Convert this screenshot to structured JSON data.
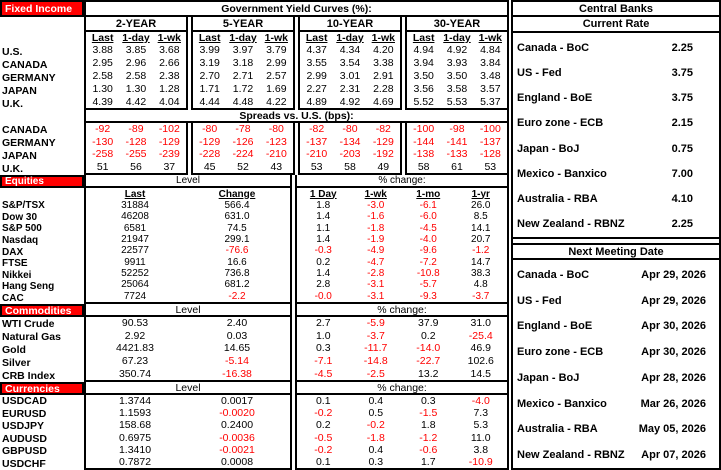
{
  "colors": {
    "accent_red": "#FF0000",
    "negative_text": "#FF0000",
    "border": "#000000",
    "background": "#FFFFFF"
  },
  "fixed_income": {
    "section_label": "Fixed Income",
    "title": "Government Yield Curves (%):",
    "tenors": [
      "2-YEAR",
      "5-YEAR",
      "10-YEAR",
      "30-YEAR"
    ],
    "col_headers": [
      "Last",
      "1-day",
      "1-wk"
    ],
    "yield_rows": [
      {
        "label": "U.S.",
        "values": [
          "3.88",
          "3.85",
          "3.68",
          "3.99",
          "3.97",
          "3.79",
          "4.37",
          "4.34",
          "4.20",
          "4.94",
          "4.92",
          "4.84"
        ]
      },
      {
        "label": "CANADA",
        "values": [
          "2.95",
          "2.96",
          "2.66",
          "3.19",
          "3.18",
          "2.99",
          "3.55",
          "3.54",
          "3.38",
          "3.94",
          "3.93",
          "3.84"
        ]
      },
      {
        "label": "GERMANY",
        "values": [
          "2.58",
          "2.58",
          "2.38",
          "2.70",
          "2.71",
          "2.57",
          "2.99",
          "3.01",
          "2.91",
          "3.50",
          "3.50",
          "3.48"
        ]
      },
      {
        "label": "JAPAN",
        "values": [
          "1.30",
          "1.30",
          "1.28",
          "1.71",
          "1.72",
          "1.69",
          "2.27",
          "2.31",
          "2.28",
          "3.56",
          "3.58",
          "3.57"
        ]
      },
      {
        "label": "U.K.",
        "values": [
          "4.39",
          "4.42",
          "4.04",
          "4.44",
          "4.48",
          "4.22",
          "4.89",
          "4.92",
          "4.69",
          "5.52",
          "5.53",
          "5.37"
        ]
      }
    ],
    "spreads_title": "Spreads vs. U.S. (bps):",
    "spread_rows": [
      {
        "label": "CANADA",
        "values": [
          "-92",
          "-89",
          "-102",
          "-80",
          "-78",
          "-80",
          "-82",
          "-80",
          "-82",
          "-100",
          "-98",
          "-100"
        ]
      },
      {
        "label": "GERMANY",
        "values": [
          "-130",
          "-128",
          "-129",
          "-129",
          "-126",
          "-123",
          "-137",
          "-134",
          "-129",
          "-144",
          "-141",
          "-137"
        ]
      },
      {
        "label": "JAPAN",
        "values": [
          "-258",
          "-255",
          "-239",
          "-228",
          "-224",
          "-210",
          "-210",
          "-203",
          "-192",
          "-138",
          "-133",
          "-128"
        ]
      },
      {
        "label": "U.K.",
        "values": [
          "51",
          "56",
          "37",
          "45",
          "52",
          "43",
          "53",
          "58",
          "49",
          "58",
          "61",
          "53"
        ]
      }
    ]
  },
  "equities": {
    "section_label": "Equities",
    "level_label": "Level",
    "pct_label": "% change:",
    "level_headers": [
      "Last",
      "Change"
    ],
    "pct_headers": [
      "1 Day",
      "1-wk",
      "1-mo",
      "1-yr"
    ],
    "rows": [
      {
        "label": "S&P/TSX",
        "level": [
          "31884",
          "566.4"
        ],
        "pct": [
          "1.8",
          "-3.0",
          "-6.1",
          "26.0"
        ]
      },
      {
        "label": "Dow 30",
        "level": [
          "46208",
          "631.0"
        ],
        "pct": [
          "1.4",
          "-1.6",
          "-6.0",
          "8.5"
        ]
      },
      {
        "label": "S&P 500",
        "level": [
          "6581",
          "74.5"
        ],
        "pct": [
          "1.1",
          "-1.8",
          "-4.5",
          "14.1"
        ]
      },
      {
        "label": "Nasdaq",
        "level": [
          "21947",
          "299.1"
        ],
        "pct": [
          "1.4",
          "-1.9",
          "-4.0",
          "20.7"
        ]
      },
      {
        "label": "DAX",
        "level": [
          "22577",
          "-76.6"
        ],
        "pct": [
          "-0.3",
          "-4.9",
          "-9.6",
          "-1.2"
        ]
      },
      {
        "label": "FTSE",
        "level": [
          "9911",
          "16.6"
        ],
        "pct": [
          "0.2",
          "-4.7",
          "-7.2",
          "14.7"
        ]
      },
      {
        "label": "Nikkei",
        "level": [
          "52252",
          "736.8"
        ],
        "pct": [
          "1.4",
          "-2.8",
          "-10.8",
          "38.3"
        ]
      },
      {
        "label": "Hang Seng",
        "level": [
          "25064",
          "681.2"
        ],
        "pct": [
          "2.8",
          "-3.1",
          "-5.7",
          "4.8"
        ]
      },
      {
        "label": "CAC",
        "level": [
          "7724",
          "-2.2"
        ],
        "pct": [
          "-0.0",
          "-3.1",
          "-9.3",
          "-3.7"
        ]
      }
    ]
  },
  "commodities": {
    "section_label": "Commodities",
    "level_label": "Level",
    "pct_label": "% change:",
    "rows": [
      {
        "label": "WTI Crude",
        "level": [
          "90.53",
          "2.40"
        ],
        "pct": [
          "2.7",
          "-5.9",
          "37.9",
          "31.0"
        ]
      },
      {
        "label": "Natural Gas",
        "level": [
          "2.92",
          "0.03"
        ],
        "pct": [
          "1.0",
          "-3.7",
          "0.2",
          "-25.4"
        ]
      },
      {
        "label": "Gold",
        "level": [
          "4421.83",
          "14.65"
        ],
        "pct": [
          "0.3",
          "-11.7",
          "-14.0",
          "46.9"
        ]
      },
      {
        "label": "Silver",
        "level": [
          "67.23",
          "-5.14"
        ],
        "pct": [
          "-7.1",
          "-14.8",
          "-22.7",
          "102.6"
        ]
      },
      {
        "label": "CRB Index",
        "level": [
          "350.74",
          "-16.38"
        ],
        "pct": [
          "-4.5",
          "-2.5",
          "13.2",
          "14.5"
        ]
      }
    ]
  },
  "currencies": {
    "section_label": "Currencies",
    "level_label": "Level",
    "pct_label": "% change:",
    "rows": [
      {
        "label": "USDCAD",
        "level": [
          "1.3744",
          "0.0017"
        ],
        "pct": [
          "0.1",
          "0.4",
          "0.3",
          "-4.0"
        ]
      },
      {
        "label": "EURUSD",
        "level": [
          "1.1593",
          "-0.0020"
        ],
        "pct": [
          "-0.2",
          "0.5",
          "-1.5",
          "7.3"
        ]
      },
      {
        "label": "USDJPY",
        "level": [
          "158.68",
          "0.2400"
        ],
        "pct": [
          "0.2",
          "-0.2",
          "1.8",
          "5.3"
        ]
      },
      {
        "label": "AUDUSD",
        "level": [
          "0.6975",
          "-0.0036"
        ],
        "pct": [
          "-0.5",
          "-1.8",
          "-1.2",
          "11.0"
        ]
      },
      {
        "label": "GBPUSD",
        "level": [
          "1.3410",
          "-0.0021"
        ],
        "pct": [
          "-0.2",
          "0.4",
          "-0.6",
          "3.8"
        ]
      },
      {
        "label": "USDCHF",
        "level": [
          "0.7872",
          "0.0008"
        ],
        "pct": [
          "0.1",
          "0.3",
          "1.7",
          "-10.9"
        ]
      }
    ]
  },
  "central_banks": {
    "title": "Central Banks",
    "current_rate_label": "Current Rate",
    "next_meeting_label": "Next Meeting Date",
    "rates": [
      {
        "bank": "Canada - BoC",
        "rate": "2.25"
      },
      {
        "bank": "US - Fed",
        "rate": "3.75"
      },
      {
        "bank": "England - BoE",
        "rate": "3.75"
      },
      {
        "bank": "Euro zone - ECB",
        "rate": "2.15"
      },
      {
        "bank": "Japan - BoJ",
        "rate": "0.75"
      },
      {
        "bank": "Mexico - Banxico",
        "rate": "7.00"
      },
      {
        "bank": "Australia - RBA",
        "rate": "4.10"
      },
      {
        "bank": "New Zealand - RBNZ",
        "rate": "2.25"
      }
    ],
    "meetings": [
      {
        "bank": "Canada - BoC",
        "date": "Apr 29, 2026"
      },
      {
        "bank": "US - Fed",
        "date": "Apr 29, 2026"
      },
      {
        "bank": "England - BoE",
        "date": "Apr 30, 2026"
      },
      {
        "bank": "Euro zone - ECB",
        "date": "Apr 30, 2026"
      },
      {
        "bank": "Japan - BoJ",
        "date": "Apr 28, 2026"
      },
      {
        "bank": "Mexico - Banxico",
        "date": "Mar 26, 2026"
      },
      {
        "bank": "Australia - RBA",
        "date": "May 05, 2026"
      },
      {
        "bank": "New Zealand - RBNZ",
        "date": "Apr 07, 2026"
      }
    ]
  }
}
